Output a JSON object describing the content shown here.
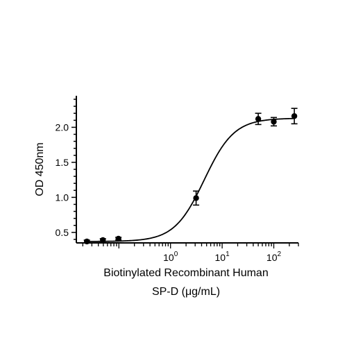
{
  "chart_data": {
    "type": "scatter",
    "title": "",
    "xlabel_lines": [
      "Biotinylated Recombinant Human",
      "SP-D (μg/mL)"
    ],
    "ylabel": "OD 450nm",
    "x_scale": "log",
    "xlim": [
      0.015,
      300
    ],
    "ylim": [
      0.35,
      2.45
    ],
    "grid": false,
    "legend": "none",
    "x_tick_labels": [
      {
        "value": 1,
        "base": "10",
        "exp": "0"
      },
      {
        "value": 10,
        "base": "10",
        "exp": "1"
      },
      {
        "value": 100,
        "base": "10",
        "exp": "2"
      }
    ],
    "y_ticks": [
      {
        "value": 0.5,
        "label": "0.5"
      },
      {
        "value": 1.0,
        "label": "1.0"
      },
      {
        "value": 1.5,
        "label": "1.5"
      },
      {
        "value": 2.0,
        "label": "2.0"
      }
    ],
    "series": [
      {
        "points": [
          {
            "x": 0.024,
            "y": 0.37,
            "err": 0.02
          },
          {
            "x": 0.049,
            "y": 0.39,
            "err": 0.02
          },
          {
            "x": 0.098,
            "y": 0.41,
            "err": 0.02
          },
          {
            "x": 3.13,
            "y": 0.99,
            "err": 0.1
          },
          {
            "x": 50,
            "y": 2.12,
            "err": 0.08
          },
          {
            "x": 100,
            "y": 2.08,
            "err": 0.06
          },
          {
            "x": 250,
            "y": 2.16,
            "err": 0.11
          }
        ],
        "fit": {
          "model": "4PL",
          "bottom": 0.37,
          "top": 2.13,
          "ec50": 4.5,
          "hill": 1.5
        }
      }
    ],
    "color": "#000000"
  }
}
